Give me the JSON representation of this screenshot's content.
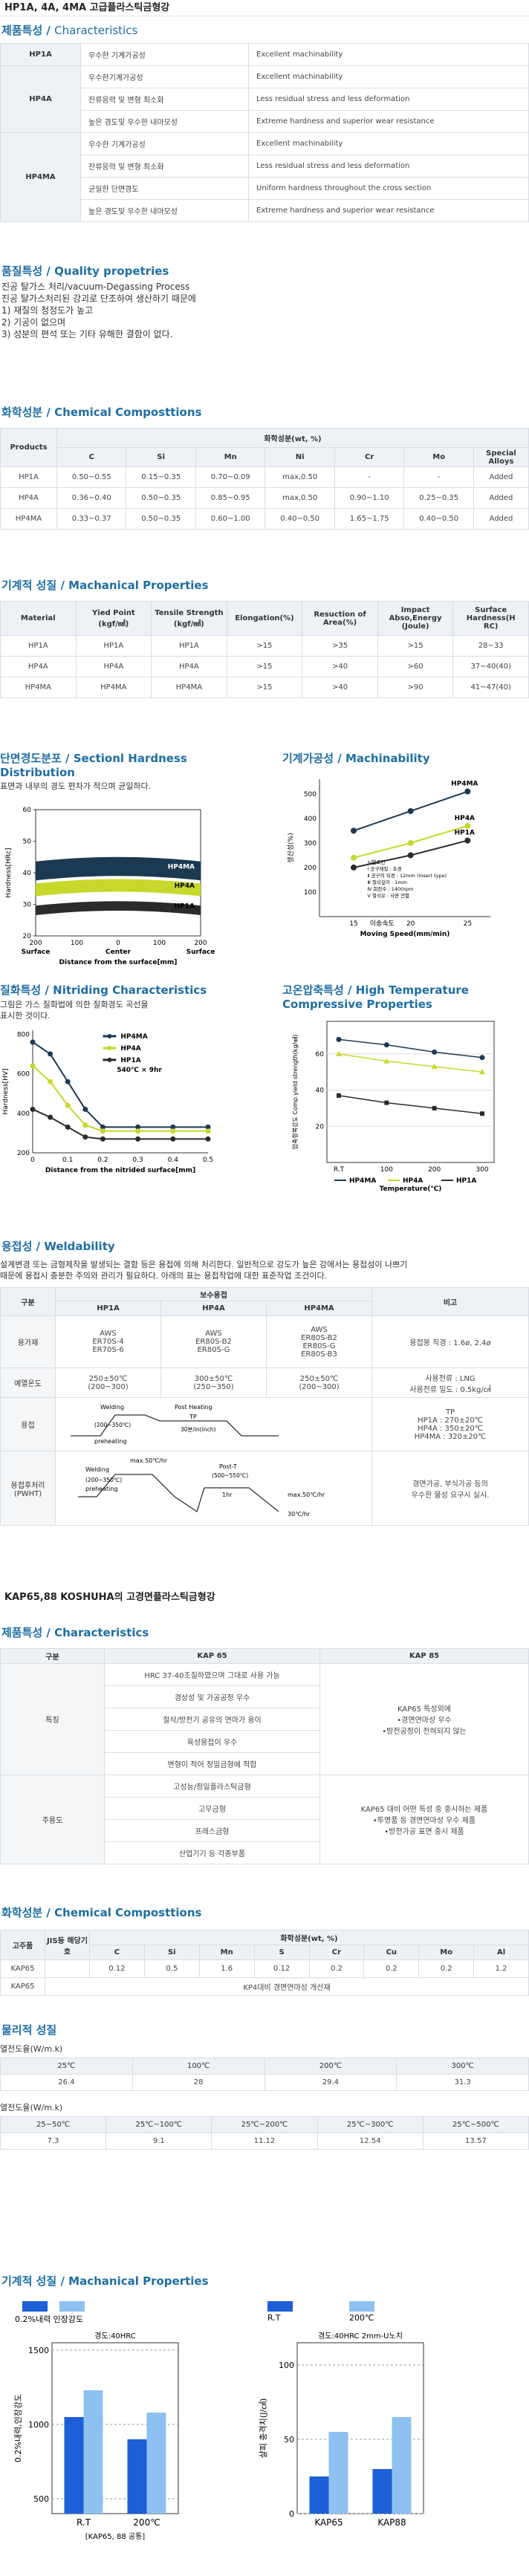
{
  "page_title": "HP1A, 4A, 4MA 고급플라스틱금형강",
  "characteristics": {
    "title_kr": "제품특성",
    "title_en": "Characteristics",
    "rows": [
      {
        "grade": "HP1A",
        "kr": "우수한 기계가공성",
        "en": "Excellent machinability"
      },
      {
        "grade": "HP4A",
        "kr": "우수한기계가공성",
        "en": "Excellent machinability"
      },
      {
        "grade": "",
        "kr": "잔류응력 및 변형 최소화",
        "en": "Less residual stress and less deformation"
      },
      {
        "grade": "",
        "kr": "높은 경도및 우수한 내마모성",
        "en": "Extreme hardness and superior wear resistance"
      },
      {
        "grade": "HP4MA",
        "kr": "우수한 기계가공성",
        "en": "Excellent machinability"
      },
      {
        "grade": "",
        "kr": "잔류응력 및 변형 최소화",
        "en": "Less residual stress and less deformation"
      },
      {
        "grade": "",
        "kr": "균일한 단면경도",
        "en": "Uniform hardness throughout the cross section"
      },
      {
        "grade": "",
        "kr": "높은 경도및 우수한 내마모성",
        "en": "Extreme hardness and superior wear resistance"
      }
    ]
  },
  "quality": {
    "title_kr": "품질특성",
    "title_en": "Quality propetries",
    "lines": [
      "진공 탈가스 처리/vacuum-Degassing Process",
      "진공 탈가스처리된 강괴로 단조하여 생산하기 때문에",
      "1) 재질의 청정도가 높고",
      "2) 기공이 없으며",
      "3) 성분의 편석 또는 기타 유해한 결함이 없다."
    ]
  },
  "chem1": {
    "title_kr": "화학성분",
    "title_en": "Chemical Composttions",
    "header_group": "화학성분(wt, %)",
    "headers": [
      "Products",
      "C",
      "Si",
      "Mn",
      "Ni",
      "Cr",
      "Mo",
      "Special Alloys"
    ],
    "rows": [
      [
        "HP1A",
        "0.50~0.55",
        "0.15~0.35",
        "0.70~0.09",
        "max,0.50",
        "-",
        "-",
        "Added"
      ],
      [
        "HP4A",
        "0.36~0.40",
        "0.50~0.35",
        "0.85~0.95",
        "max,0.50",
        "0.90~1.10",
        "0.25~0.35",
        "Added"
      ],
      [
        "HP4MA",
        "0.33~0.37",
        "0.50~0.35",
        "0.60~1.00",
        "0.40~0.50",
        "1.65~1.75",
        "0.40~0.50",
        "Added"
      ]
    ]
  },
  "mech1": {
    "title_kr": "기계적 성질",
    "title_en": "Machanical Properties",
    "headers": [
      {
        "l1": "Material",
        "l2": ""
      },
      {
        "l1": "Yied Point",
        "l2": "(kgf/㎟)"
      },
      {
        "l1": "Tensile Strength",
        "l2": "(kgf/㎟)"
      },
      {
        "l1": "Elongation(%)",
        "l2": ""
      },
      {
        "l1": "Resuction of Area(%)",
        "l2": ""
      },
      {
        "l1": "Impact Abso,Energy",
        "l2": "(Joule)"
      },
      {
        "l1": "Surface Hardness(H",
        "l2": "RC)"
      }
    ],
    "rows": [
      [
        "HP1A",
        "HP1A",
        "HP1A",
        ">15",
        ">35",
        ">15",
        "28~33"
      ],
      [
        "HP4A",
        "HP4A",
        "HP4A",
        ">15",
        ">40",
        ">60",
        "37~40(40)"
      ],
      [
        "HP4MA",
        "HP4MA",
        "HP4MA",
        ">15",
        ">40",
        ">90",
        "41~47(40)"
      ]
    ]
  },
  "section_hardness": {
    "title_kr": "단면경도분포",
    "title_en": "Sectionl Hardness Distribution",
    "desc": "표면과 내부의 경도 편차가 적으며 균일하다.",
    "chart_data": {
      "type": "area",
      "title": "",
      "xlabel": "Distance from the surface[mm]",
      "ylabel": "Hardness[HRc]",
      "x_ticks": [
        "200",
        "100",
        "0",
        "100",
        "200"
      ],
      "x_sub_labels": [
        "Surface",
        "Center",
        "Surface"
      ],
      "y_ticks": [
        20,
        30,
        40,
        50,
        60
      ],
      "ylim": [
        20,
        60
      ],
      "series": [
        {
          "name": "HP4MA",
          "color": "#1b3a52",
          "low": 39,
          "high": 45
        },
        {
          "name": "HP4A",
          "color": "#c7d82a",
          "low": 34,
          "high": 38
        },
        {
          "name": "HP1A",
          "color": "#2b2b2b",
          "low": 28,
          "high": 31
        }
      ]
    }
  },
  "machinability": {
    "title_kr": "기계가공성",
    "title_en": "Machinability",
    "chart_data": {
      "type": "line",
      "xlabel_kr": "이송속도",
      "xlabel": "Moving Speed(mm/min)",
      "ylabel": "생산성(%)",
      "x": [
        15,
        20,
        25
      ],
      "x_ticks": [
        15,
        20,
        25
      ],
      "y_ticks": [
        100,
        200,
        300,
        400,
        500
      ],
      "ylim": [
        0,
        560
      ],
      "legend_notes": [
        "시험조건",
        "Ⅰ 공구재질 : 초경",
        "Ⅱ 공구의 직경 : 12mm (insert type)",
        "Ⅲ 절삭깊이 : 1mm",
        "Ⅳ 회전수 : 1400rpm",
        "Ⅴ 절삭유 : 사용 안함"
      ],
      "series": [
        {
          "name": "HP4MA",
          "color": "#1b3a52",
          "values": [
            350,
            430,
            510
          ]
        },
        {
          "name": "HP4A",
          "color": "#c7d82a",
          "values": [
            240,
            300,
            370
          ]
        },
        {
          "name": "HP1A",
          "color": "#2b2b2b",
          "values": [
            200,
            250,
            310
          ]
        }
      ]
    }
  },
  "nitriding": {
    "title_kr": "질화특성",
    "title_en": "Nitriding Characteristics",
    "desc": [
      "그림은 가스 질화법에 의한 질화경도 곡선을",
      "표시한 것이다."
    ],
    "chart_data": {
      "type": "line",
      "xlabel": "Distance from the nitrided surface[mm]",
      "ylabel": "Hardness[HV]",
      "x": [
        0,
        0.1,
        0.2,
        0.3,
        0.4,
        0.5
      ],
      "x_ticks": [
        "0",
        "0.1",
        "0.2",
        "0.3",
        "0.4",
        "0.5"
      ],
      "y_ticks": [
        200,
        400,
        600,
        800
      ],
      "ylim": [
        200,
        820
      ],
      "note": "540℃ × 9hr",
      "series": [
        {
          "name": "HP4MA",
          "color": "#1b3a52",
          "points": [
            [
              0,
              760
            ],
            [
              0.05,
              700
            ],
            [
              0.1,
              560
            ],
            [
              0.15,
              420
            ],
            [
              0.2,
              330
            ],
            [
              0.3,
              330
            ],
            [
              0.4,
              330
            ],
            [
              0.5,
              330
            ]
          ]
        },
        {
          "name": "HP4A",
          "color": "#c7d82a",
          "points": [
            [
              0,
              640
            ],
            [
              0.05,
              560
            ],
            [
              0.1,
              440
            ],
            [
              0.15,
              340
            ],
            [
              0.2,
              310
            ],
            [
              0.3,
              310
            ],
            [
              0.4,
              310
            ],
            [
              0.5,
              310
            ]
          ]
        },
        {
          "name": "HP1A",
          "color": "#2b2b2b",
          "points": [
            [
              0,
              420
            ],
            [
              0.05,
              380
            ],
            [
              0.1,
              330
            ],
            [
              0.15,
              280
            ],
            [
              0.2,
              270
            ],
            [
              0.3,
              270
            ],
            [
              0.4,
              270
            ],
            [
              0.5,
              270
            ]
          ]
        }
      ]
    }
  },
  "high_temp": {
    "title_kr": "고온압축특성",
    "title_en": "High Temperature Compressive Properties",
    "chart_data": {
      "type": "line",
      "xlabel": "Temperature(℃)",
      "ylabel": "압축항복강도 Comp.yield strength(kg/㎟)",
      "x_ticks": [
        "R.T",
        "100",
        "200",
        "300"
      ],
      "x": [
        0,
        100,
        200,
        300
      ],
      "y_ticks": [
        20,
        40,
        60
      ],
      "ylim": [
        0,
        78
      ],
      "series": [
        {
          "name": "HP4MA",
          "color": "#1b3a52",
          "values": [
            68,
            65,
            61,
            58
          ]
        },
        {
          "name": "HP4A",
          "color": "#c7d82a",
          "values": [
            60,
            56,
            53,
            50
          ]
        },
        {
          "name": "HP1A",
          "color": "#2b2b2b",
          "values": [
            37,
            33,
            30,
            27
          ]
        }
      ]
    }
  },
  "weldability": {
    "title_kr": "용접성",
    "title_en": "Weldability",
    "desc": [
      "설계변경 또는 금형제작을 발생되는 결함 등은 용접에 의해 처리한다. 일반적으로 강도가 높은 강에서는 용접성이 나쁘기",
      "때문에 용접시 충분한 주의와 관리가 필요하다. 아래의 표는 용접작업에 대한 표준작업 조건이다."
    ],
    "header_group": "보수용접",
    "headers": [
      "구분",
      "HP1A",
      "HP4A",
      "HP4MA",
      "비고"
    ],
    "rows": [
      {
        "label": "용가재",
        "c1": [
          "AWS",
          "ER70S-4",
          "ER70S-6"
        ],
        "c2": [
          "AWS",
          "ER80S-B2",
          "ER80S-G"
        ],
        "c3": [
          "AWS",
          "ER80S-B2",
          "ER80S-G",
          "ER80S-B3"
        ],
        "note": [
          "용접봉 직경 : 1.6ø, 2.4ø"
        ]
      },
      {
        "label": "예열온도",
        "c1": [
          "250±50℃",
          "(200~300)"
        ],
        "c2": [
          "300±50℃",
          "(250~350)"
        ],
        "c3": [
          "250±50℃",
          "(200~300)"
        ],
        "note": [
          "사용전류 : LNG",
          "사용전류 밀도 : 0.5kg/㎠"
        ]
      },
      {
        "label": "용접",
        "c1": [],
        "c2": [],
        "c3": [],
        "note": [
          "TP",
          "HP1A : 270±20℃",
          "HP4A : 350±20℃",
          "HP4MA : 320±20℃"
        ]
      },
      {
        "label": "용접후처리\n(PWHT)",
        "c1": [],
        "c2": [],
        "c3": [],
        "note": [
          "경면가공, 부식가공 등의",
          "우수한 물성 요구시 실시."
        ]
      }
    ],
    "diagram_labels": {
      "welding": "Welding",
      "post_heating": "Post Heating",
      "tp": "TP",
      "preheating_range": "(200~350℃)",
      "preheating": "preheating",
      "duration": "30분/in(inch)",
      "rate": "max.50℃/hr",
      "post_t": "Post-T",
      "post_t_range": "(500~550℃)",
      "hold": "1hr",
      "cool": "30℃/hr"
    }
  },
  "kap_title": "KAP65,88 KOSHUHA의 고경면플라스틱금형강",
  "kap_chars": {
    "title_kr": "제품특성",
    "title_en": "Characteristics",
    "headers": [
      "구분",
      "KAP 65",
      "KAP 85"
    ],
    "groups": [
      {
        "label": "특징",
        "items": [
          "HRC 37-40조질하였으며 그대로 사용 가능",
          "경상성 및 가공공정 우수",
          "절삭/방전기 공유의 연마가 용이",
          "육성용접이 우수",
          "변형이 적어 정밀금형에 적합"
        ],
        "note": [
          "KAP65 특성외에",
          "•경면연마성 우수",
          "•방전공정이 전혀되지 않는"
        ]
      },
      {
        "label": "주용도",
        "items": [
          "고성능/정밀플라스틱금형",
          "고무금형",
          "프레스금형",
          "산업기기 등 각종부품"
        ],
        "note": [
          "KAP65 대비 어떤 특성 중 중시하는 제품",
          "•투명품 등 경면연마성 우수 제품",
          "•방전가공 표면 중시 제품"
        ]
      }
    ]
  },
  "chem2": {
    "title_kr": "화학성분",
    "title_en": "Chemical Composttions",
    "header_group": "화학성분(wt, %)",
    "headers": [
      "고주품",
      "JIS등 해당기호",
      "C",
      "Si",
      "Mn",
      "S",
      "Cr",
      "Cu",
      "Mo",
      "Al"
    ],
    "rows": [
      [
        "KAP65",
        "",
        "0.12",
        "0.5",
        "1.6",
        "0.12",
        "0.2",
        "0.2",
        "0.2",
        "1.2"
      ]
    ],
    "row2_label": "KAP65",
    "row2_text": "KP4대비 경면연마성 개선재"
  },
  "physical": {
    "title_kr": "물리적 성질",
    "cond_label": "열전도율(W/m.k)",
    "table1": {
      "headers": [
        "25℃",
        "100℃",
        "200℃",
        "300℃"
      ],
      "values": [
        "26.4",
        "28",
        "29.4",
        "31.3"
      ]
    },
    "expansion_label": "열전도율(W/m.k)",
    "table2": {
      "headers": [
        "25~50℃",
        "25℃~100℃",
        "25℃~200℃",
        "25℃~300℃",
        "25℃~500℃"
      ],
      "values": [
        "7.3",
        "9.1",
        "11.12",
        "12.54",
        "13.57"
      ]
    }
  },
  "mech2": {
    "title_kr": "기계적 성질",
    "title_en": "Machanical Properties",
    "chart1": {
      "type": "bar",
      "legend": "0.2%내력 인장강도",
      "subtitle": "경도:40HRC",
      "ylabel": "0.2%내력,인장강도",
      "categories": [
        "R.T",
        "200℃"
      ],
      "y_ticks": [
        500,
        1000,
        1500
      ],
      "ylim": [
        400,
        1550
      ],
      "series": [
        {
          "name": "0.2%내력",
          "color": "#1d5fd6",
          "values": [
            1050,
            900
          ]
        },
        {
          "name": "인장강도",
          "color": "#8fc0f2",
          "values": [
            1230,
            1080
          ]
        }
      ],
      "caption": "[KAP65, 88 공통]"
    },
    "chart2": {
      "type": "bar",
      "legend_items": [
        "R.T",
        "200℃"
      ],
      "subtitle": "경도:40HRC 2mm-U노치",
      "ylabel": "샬피 충격치(J/㎠)",
      "categories": [
        "KAP65",
        "KAP88"
      ],
      "y_ticks": [
        0,
        50,
        100
      ],
      "ylim": [
        0,
        115
      ],
      "series": [
        {
          "name": "R.T",
          "color": "#1d5fd6",
          "values": [
            25,
            30
          ]
        },
        {
          "name": "200℃",
          "color": "#8fc0f2",
          "values": [
            55,
            65
          ]
        }
      ]
    }
  }
}
